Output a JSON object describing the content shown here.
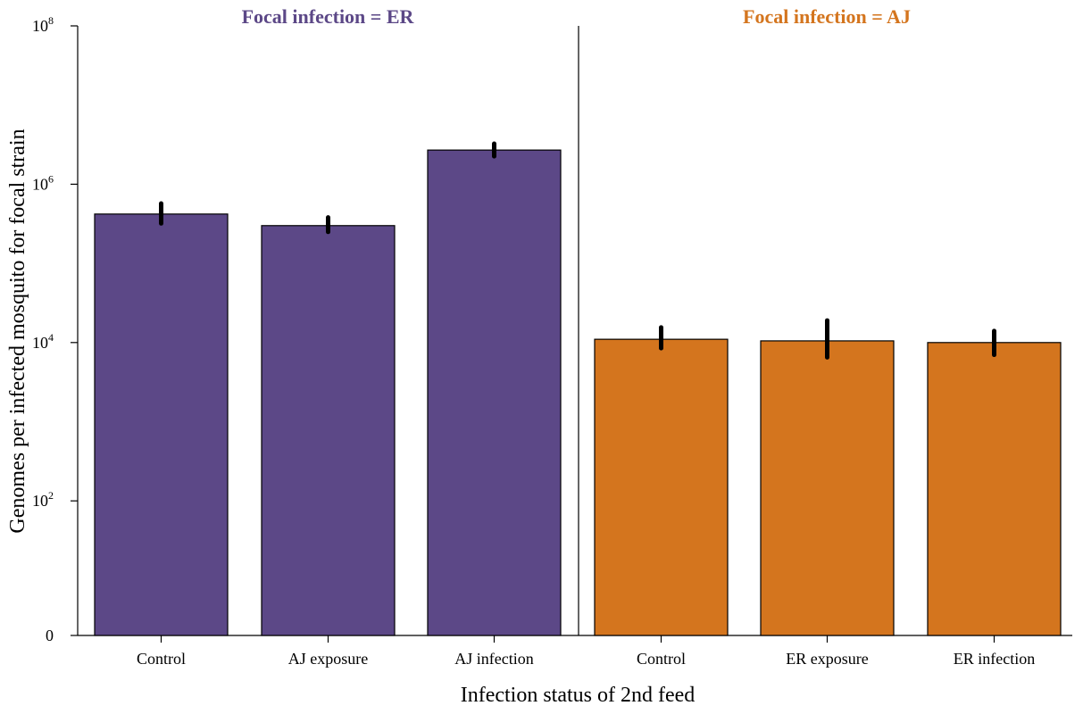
{
  "chart_data": {
    "type": "bar",
    "ylabel": "Genomes per infected mosquito for focal strain",
    "xlabel": "Infection status of 2nd feed",
    "y_scale": "log10 with zero baseline",
    "ylim": [
      0,
      100000000
    ],
    "y_ticks": [
      {
        "value": 0,
        "base": "0",
        "exp": ""
      },
      {
        "value": 100,
        "base": "10",
        "exp": "2"
      },
      {
        "value": 10000,
        "base": "10",
        "exp": "4"
      },
      {
        "value": 1000000,
        "base": "10",
        "exp": "6"
      },
      {
        "value": 100000000,
        "base": "10",
        "exp": "8"
      }
    ],
    "grid": false,
    "panels": [
      {
        "title": "Focal infection = ER",
        "color": "#5c4887",
        "categories": [
          "Control",
          "AJ exposure",
          "AJ infection"
        ],
        "values": [
          420000,
          300000,
          2700000
        ],
        "error_low": [
          320000,
          250000,
          2250000
        ],
        "error_high": [
          570000,
          380000,
          3250000
        ]
      },
      {
        "title": "Focal infection = AJ",
        "color": "#d4751e",
        "categories": [
          "Control",
          "ER exposure",
          "ER infection"
        ],
        "values": [
          11000,
          10500,
          10000
        ],
        "error_low": [
          8500,
          6500,
          7000
        ],
        "error_high": [
          15500,
          19000,
          14000
        ]
      }
    ]
  }
}
